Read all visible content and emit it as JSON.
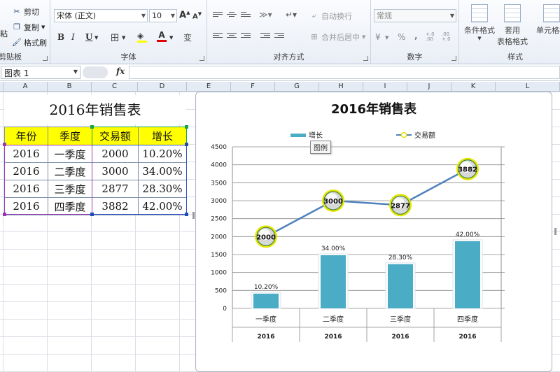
{
  "ribbon": {
    "clipboard": {
      "paste_label": "粘",
      "cut_label": "剪切",
      "copy_label": "复制",
      "format_painter_label": "格式刷",
      "group_label": "剪贴板"
    },
    "font": {
      "font_name": "宋体 (正文)",
      "font_size": "10",
      "grow_label": "A",
      "shrink_label": "A",
      "bold": "B",
      "italic": "I",
      "underline": "U",
      "border_label": "田",
      "fill_label": "A",
      "color_label": "A",
      "phonetic_label": "变",
      "group_label": "字体"
    },
    "alignment": {
      "wrap_text_label": "自动换行",
      "merge_label": "合并后居中",
      "group_label": "对齐方式"
    },
    "number": {
      "format_value": "常规",
      "currency_label": "¥",
      "percent_label": "%",
      "comma_label": ",",
      "inc_decimal_label": "+.0 .00",
      "dec_decimal_label": ".00 +.0",
      "group_label": "数字"
    },
    "styles": {
      "cond_format_label": "条件格式",
      "format_table_label_1": "套用",
      "format_table_label_2": "表格格式",
      "cell_styles_label": "单元格样",
      "group_label": "样式"
    }
  },
  "formula_bar": {
    "name_box": "图表 1",
    "fx_label": "fx",
    "value": ""
  },
  "columns": [
    "A",
    "B",
    "C",
    "D",
    "E",
    "F",
    "G",
    "H",
    "I",
    "J",
    "K",
    "L"
  ],
  "sheet": {
    "title": "2016年销售表",
    "headers": [
      "年份",
      "季度",
      "交易额",
      "增长"
    ],
    "rows": [
      [
        "2016",
        "一季度",
        "2000",
        "10.20%"
      ],
      [
        "2016",
        "二季度",
        "3000",
        "34.00%"
      ],
      [
        "2016",
        "三季度",
        "2877",
        "28.30%"
      ],
      [
        "2016",
        "四季度",
        "3882",
        "42.00%"
      ]
    ]
  },
  "chart_data": {
    "type": "bar",
    "title": "2016年销售表",
    "categories": [
      "一季度",
      "二季度",
      "三季度",
      "四季度"
    ],
    "category_group": "2016",
    "ylim": [
      0,
      4500
    ],
    "ytick_step": 500,
    "grid": true,
    "legend": "top",
    "tooltip": "图例",
    "series": [
      {
        "name": "增长",
        "kind": "bar",
        "values": [
          410,
          1480,
          1230,
          1870
        ],
        "labels": [
          "10.20%",
          "34.00%",
          "28.30%",
          "42.00%"
        ],
        "color": "#4bacc6"
      },
      {
        "name": "交易额",
        "kind": "line",
        "values": [
          2000,
          3000,
          2877,
          3882
        ],
        "labels": [
          "2000",
          "3000",
          "2877",
          "3882"
        ],
        "color": "#4f81bd",
        "marker_ring": "#e6e600"
      }
    ]
  }
}
